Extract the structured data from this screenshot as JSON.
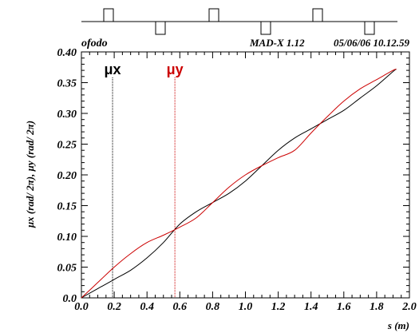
{
  "header": {
    "name": "ofodo",
    "program": "MAD-X 1.12",
    "date_time": "05/06/06 10.12.59"
  },
  "chart_data": {
    "type": "line",
    "title": "",
    "xlabel": "s (m)",
    "ylabel": "μx (rad/ 2π),  μy (rad/ 2π)",
    "xlim": [
      0.0,
      2.0
    ],
    "ylim": [
      0.0,
      0.4
    ],
    "x_ticks": [
      "0.0",
      "0.2",
      "0.4",
      "0.6",
      "0.8",
      "1.0",
      "1.2",
      "1.4",
      "1.6",
      "1.8",
      "2.0"
    ],
    "y_ticks": [
      "0.0",
      "0.05",
      "0.10",
      "0.15",
      "0.20",
      "0.25",
      "0.30",
      "0.35",
      "0.40"
    ],
    "grid": false,
    "legend_placement": "top-left",
    "series": [
      {
        "name": "μx",
        "color": "#000000",
        "x": [
          0.0,
          0.1,
          0.2,
          0.3,
          0.4,
          0.5,
          0.6,
          0.7,
          0.8,
          0.9,
          1.0,
          1.1,
          1.2,
          1.3,
          1.4,
          1.5,
          1.6,
          1.7,
          1.8,
          1.9,
          1.92
        ],
        "y": [
          0.0,
          0.015,
          0.03,
          0.045,
          0.065,
          0.09,
          0.12,
          0.14,
          0.155,
          0.17,
          0.19,
          0.215,
          0.24,
          0.26,
          0.275,
          0.29,
          0.305,
          0.325,
          0.345,
          0.368,
          0.372
        ]
      },
      {
        "name": "μy",
        "color": "#cc0000",
        "x": [
          0.0,
          0.1,
          0.2,
          0.3,
          0.4,
          0.5,
          0.6,
          0.7,
          0.8,
          0.9,
          1.0,
          1.1,
          1.2,
          1.3,
          1.4,
          1.5,
          1.6,
          1.7,
          1.8,
          1.9,
          1.92
        ],
        "y": [
          0.0,
          0.025,
          0.05,
          0.072,
          0.09,
          0.102,
          0.115,
          0.13,
          0.155,
          0.18,
          0.2,
          0.215,
          0.228,
          0.24,
          0.268,
          0.295,
          0.32,
          0.34,
          0.355,
          0.37,
          0.372
        ]
      }
    ],
    "markers": [
      {
        "label": "μx",
        "x": 0.19,
        "color": "#000000"
      },
      {
        "label": "μy",
        "x": 0.57,
        "color": "#cc0000"
      }
    ]
  }
}
